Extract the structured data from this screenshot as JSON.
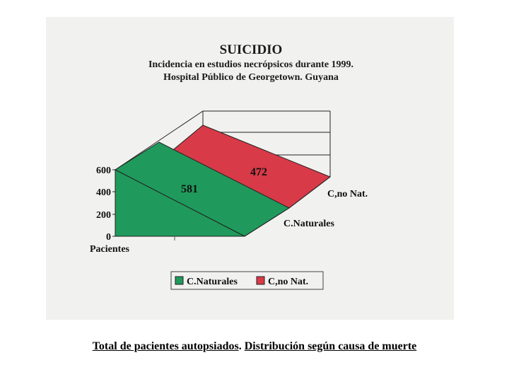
{
  "chart_data": {
    "type": "area",
    "title": "SUICIDIO",
    "subtitle_lines": [
      "Incidencia en estudios necrópsicos durante 1999.",
      "Hospital Público de Georgetown. Guyana"
    ],
    "ylabel": "Pacientes",
    "yticks": [
      "0",
      "200",
      "400",
      "600"
    ],
    "ylim": [
      0,
      600
    ],
    "series": [
      {
        "name": "C.Naturales",
        "value": 581,
        "value_label": "581",
        "color": "#1f9a5c"
      },
      {
        "name": "C,no Nat.",
        "value": 472,
        "value_label": "472",
        "color": "#d83a48"
      }
    ],
    "depth_labels": [
      "C.Naturales",
      "C,no Nat."
    ],
    "legend": [
      {
        "label": "C.Naturales",
        "color": "#1f9a5c"
      },
      {
        "label": "C,no Nat.",
        "color": "#d83a48"
      }
    ],
    "legend_position": "bottom"
  },
  "caption": {
    "part1": "Total de pacientes autopsiados",
    "sep": ". ",
    "part2": "Distribución según causa de muerte"
  }
}
